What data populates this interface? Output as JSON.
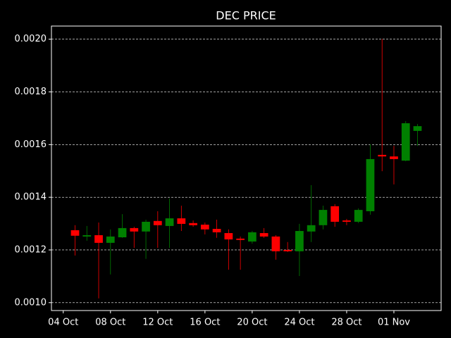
{
  "chart_data": {
    "type": "candlestick",
    "title": "DEC PRICE",
    "x": [
      "05 Oct",
      "06 Oct",
      "07 Oct",
      "08 Oct",
      "09 Oct",
      "10 Oct",
      "11 Oct",
      "12 Oct",
      "13 Oct",
      "14 Oct",
      "15 Oct",
      "16 Oct",
      "17 Oct",
      "18 Oct",
      "19 Oct",
      "20 Oct",
      "21 Oct",
      "22 Oct",
      "23 Oct",
      "24 Oct",
      "25 Oct",
      "26 Oct",
      "27 Oct",
      "28 Oct",
      "29 Oct",
      "30 Oct",
      "31 Oct",
      "01 Nov",
      "02 Nov",
      "03 Nov"
    ],
    "open": [
      0.001275,
      0.001251,
      0.001256,
      0.001227,
      0.001248,
      0.001283,
      0.00127,
      0.00131,
      0.001291,
      0.00132,
      0.001302,
      0.001296,
      0.00128,
      0.001264,
      0.001243,
      0.001232,
      0.001264,
      0.001251,
      0.0012,
      0.001195,
      0.00127,
      0.001294,
      0.001366,
      0.001312,
      0.001307,
      0.001347,
      0.001561,
      0.001555,
      0.001539,
      0.001652
    ],
    "high": [
      0.001294,
      0.001291,
      0.001304,
      0.001278,
      0.001336,
      0.001288,
      0.001315,
      0.001347,
      0.001395,
      0.001368,
      0.001312,
      0.001304,
      0.001315,
      0.001278,
      0.001251,
      0.001272,
      0.001283,
      0.001256,
      0.00123,
      0.001299,
      0.001446,
      0.001368,
      0.001374,
      0.001318,
      0.001358,
      0.001601,
      0.002001,
      0.001595,
      0.001689,
      0.001678
    ],
    "low": [
      0.001179,
      0.001235,
      0.001016,
      0.001107,
      0.001246,
      0.001208,
      0.001166,
      0.001208,
      0.001208,
      0.001272,
      0.001288,
      0.001259,
      0.001246,
      0.001125,
      0.001125,
      0.001224,
      0.001246,
      0.001163,
      0.001192,
      0.001101,
      0.00123,
      0.001278,
      0.001288,
      0.001294,
      0.001302,
      0.001334,
      0.001499,
      0.001449,
      0.001537,
      0.001595
    ],
    "close": [
      0.001254,
      0.001256,
      0.001227,
      0.001251,
      0.001283,
      0.00127,
      0.001307,
      0.001294,
      0.00132,
      0.001299,
      0.001294,
      0.001278,
      0.001267,
      0.00124,
      0.001238,
      0.001267,
      0.001251,
      0.001195,
      0.001195,
      0.001272,
      0.001294,
      0.001352,
      0.001307,
      0.001307,
      0.001352,
      0.001545,
      0.001555,
      0.001545,
      0.001681,
      0.00167
    ],
    "up_color": "#008000",
    "down_color": "#ff0000",
    "xlim": [
      "03 Oct",
      "05 Nov"
    ],
    "xticks": [
      "04 Oct",
      "08 Oct",
      "12 Oct",
      "16 Oct",
      "20 Oct",
      "24 Oct",
      "28 Oct",
      "01 Nov"
    ],
    "ylim": [
      0.00097,
      0.00205
    ],
    "yticks": [
      {
        "value": 0.001,
        "label": "0.0010"
      },
      {
        "value": 0.0012,
        "label": "0.0012"
      },
      {
        "value": 0.0014,
        "label": "0.0014"
      },
      {
        "value": 0.0016,
        "label": "0.0016"
      },
      {
        "value": 0.0018,
        "label": "0.0018"
      },
      {
        "value": 0.002,
        "label": "0.0020"
      }
    ],
    "grid": "y"
  }
}
